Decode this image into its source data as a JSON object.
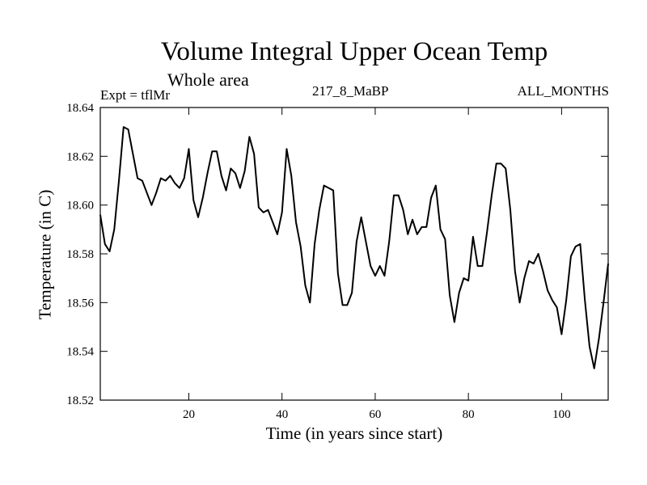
{
  "chart_data": {
    "type": "line",
    "title": "Volume Integral Upper Ocean Temp",
    "subtitle": "Whole area",
    "expt_label": "Expt = tflMr",
    "run_label": "217_8_MaBP",
    "months_label": "ALL_MONTHS",
    "xlabel": "Time (in years since start)",
    "ylabel": "Temperature (in C)",
    "xlim": [
      1,
      110
    ],
    "ylim": [
      18.52,
      18.64
    ],
    "xticks": [
      20,
      40,
      60,
      80,
      100
    ],
    "yticks": [
      "18.52",
      "18.54",
      "18.56",
      "18.58",
      "18.60",
      "18.62",
      "18.64"
    ],
    "grid": false,
    "series": [
      {
        "name": "Volume Integral Upper Ocean Temp",
        "x": [
          1,
          2,
          3,
          4,
          5,
          6,
          7,
          8,
          9,
          10,
          11,
          12,
          13,
          14,
          15,
          16,
          17,
          18,
          19,
          20,
          21,
          22,
          23,
          24,
          25,
          26,
          27,
          28,
          29,
          30,
          31,
          32,
          33,
          34,
          35,
          36,
          37,
          38,
          39,
          40,
          41,
          42,
          43,
          44,
          45,
          46,
          47,
          48,
          49,
          50,
          51,
          52,
          53,
          54,
          55,
          56,
          57,
          58,
          59,
          60,
          61,
          62,
          63,
          64,
          65,
          66,
          67,
          68,
          69,
          70,
          71,
          72,
          73,
          74,
          75,
          76,
          77,
          78,
          79,
          80,
          81,
          82,
          83,
          84,
          85,
          86,
          87,
          88,
          89,
          90,
          91,
          92,
          93,
          94,
          95,
          96,
          97,
          98,
          99,
          100,
          101,
          102,
          103,
          104,
          105,
          106,
          107,
          108,
          109,
          110
        ],
        "values": [
          18.596,
          18.584,
          18.581,
          18.59,
          18.61,
          18.632,
          18.631,
          18.621,
          18.611,
          18.61,
          18.605,
          18.6,
          18.605,
          18.611,
          18.61,
          18.612,
          18.609,
          18.607,
          18.611,
          18.623,
          18.602,
          18.595,
          18.603,
          18.613,
          18.622,
          18.622,
          18.612,
          18.606,
          18.615,
          18.613,
          18.607,
          18.614,
          18.628,
          18.621,
          18.599,
          18.597,
          18.598,
          18.593,
          18.588,
          18.597,
          18.623,
          18.612,
          18.593,
          18.583,
          18.567,
          18.56,
          18.584,
          18.598,
          18.608,
          18.607,
          18.606,
          18.572,
          18.559,
          18.559,
          18.564,
          18.585,
          18.595,
          18.585,
          18.575,
          18.571,
          18.575,
          18.571,
          18.585,
          18.604,
          18.604,
          18.598,
          18.588,
          18.594,
          18.588,
          18.591,
          18.591,
          18.603,
          18.608,
          18.59,
          18.586,
          18.563,
          18.552,
          18.564,
          18.57,
          18.569,
          18.587,
          18.575,
          18.575,
          18.589,
          18.604,
          18.617,
          18.617,
          18.615,
          18.598,
          18.573,
          18.56,
          18.57,
          18.577,
          18.576,
          18.58,
          18.573,
          18.565,
          18.561,
          18.558,
          18.547,
          18.561,
          18.579,
          18.583,
          18.584,
          18.561,
          18.542,
          18.533,
          18.545,
          18.56,
          18.576
        ]
      }
    ]
  }
}
